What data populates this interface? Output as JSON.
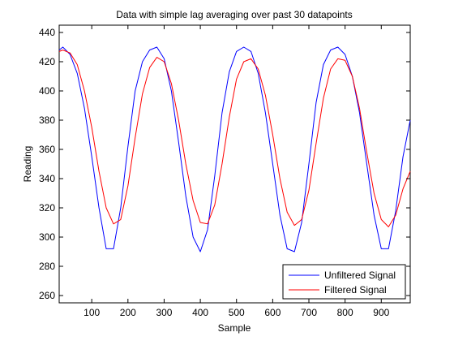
{
  "chart_data": {
    "type": "line",
    "title": "Data with simple lag averaging over past 30 datapoints",
    "xlabel": "Sample",
    "ylabel": "Reading",
    "xlim": [
      10,
      980
    ],
    "ylim": [
      255,
      445
    ],
    "x_ticks": [
      {
        "value": 100,
        "label": "100"
      },
      {
        "value": 200,
        "label": "200"
      },
      {
        "value": 300,
        "label": "300"
      },
      {
        "value": 400,
        "label": "400"
      },
      {
        "value": 500,
        "label": "500"
      },
      {
        "value": 600,
        "label": "600"
      },
      {
        "value": 700,
        "label": "700"
      },
      {
        "value": 800,
        "label": "800"
      },
      {
        "value": 900,
        "label": "900"
      }
    ],
    "y_ticks": [
      {
        "value": 260,
        "label": "260"
      },
      {
        "value": 280,
        "label": "280"
      },
      {
        "value": 300,
        "label": "300"
      },
      {
        "value": 320,
        "label": "320"
      },
      {
        "value": 340,
        "label": "340"
      },
      {
        "value": 360,
        "label": "360"
      },
      {
        "value": 380,
        "label": "380"
      },
      {
        "value": 400,
        "label": "400"
      },
      {
        "value": 420,
        "label": "420"
      },
      {
        "value": 440,
        "label": "440"
      }
    ],
    "grid": false,
    "legend_position": "bottom-right",
    "series": [
      {
        "name": "Unfiltered Signal",
        "color": "#0000ff",
        "x": [
          10,
          20,
          40,
          60,
          80,
          100,
          120,
          140,
          160,
          180,
          200,
          220,
          240,
          260,
          280,
          300,
          320,
          340,
          360,
          380,
          400,
          420,
          440,
          460,
          480,
          500,
          520,
          540,
          560,
          580,
          600,
          620,
          640,
          660,
          680,
          700,
          720,
          740,
          760,
          780,
          800,
          820,
          840,
          860,
          880,
          900,
          920,
          940,
          960,
          980
        ],
        "values": [
          428,
          430,
          425,
          412,
          388,
          355,
          320,
          292,
          292,
          320,
          362,
          400,
          420,
          428,
          430,
          422,
          400,
          365,
          328,
          300,
          290,
          305,
          342,
          385,
          413,
          427,
          430,
          427,
          412,
          385,
          350,
          315,
          292,
          290,
          310,
          350,
          392,
          418,
          428,
          430,
          425,
          410,
          385,
          350,
          315,
          292,
          292,
          318,
          355,
          380
        ]
      },
      {
        "name": "Filtered Signal",
        "color": "#ff0000",
        "x": [
          10,
          20,
          40,
          60,
          80,
          100,
          120,
          140,
          160,
          180,
          200,
          220,
          240,
          260,
          280,
          300,
          320,
          340,
          360,
          380,
          400,
          420,
          440,
          460,
          480,
          500,
          520,
          540,
          560,
          580,
          600,
          620,
          640,
          660,
          680,
          700,
          720,
          740,
          760,
          780,
          800,
          820,
          840,
          860,
          880,
          900,
          920,
          940,
          960,
          980
        ],
        "values": [
          427,
          428,
          426,
          418,
          400,
          375,
          345,
          320,
          309,
          312,
          335,
          368,
          398,
          416,
          423,
          420,
          405,
          380,
          350,
          325,
          310,
          309,
          322,
          350,
          382,
          408,
          420,
          422,
          415,
          397,
          370,
          340,
          317,
          308,
          312,
          332,
          364,
          395,
          415,
          422,
          421,
          410,
          388,
          358,
          330,
          312,
          307,
          315,
          333,
          345
        ]
      }
    ]
  }
}
